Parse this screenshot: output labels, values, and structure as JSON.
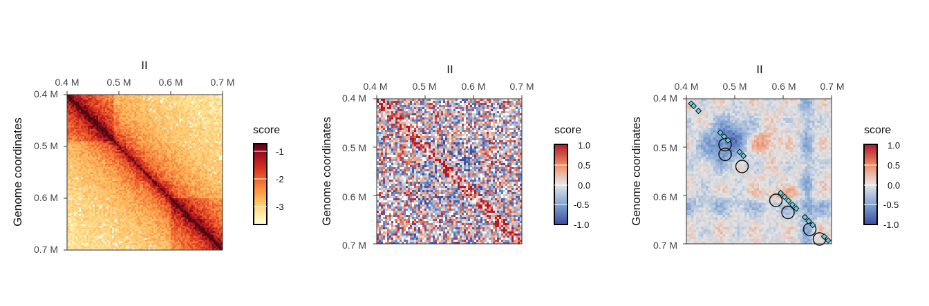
{
  "panels": [
    {
      "id": "observed",
      "title": "II",
      "ylabel": "Genome coordinates",
      "x_ticks": [
        "0.4 M",
        "0.5 M",
        "0.6 M",
        "0.7 M"
      ],
      "y_ticks": [
        "0.4 M",
        "0.5 M",
        "0.6 M",
        "0.7 M"
      ],
      "legend": {
        "title": "score",
        "ticks": [
          "-1",
          "-2",
          "-3"
        ],
        "palette": "ylorrd"
      }
    },
    {
      "id": "correlation",
      "title": "II",
      "ylabel": "Genome coordinates",
      "x_ticks": [
        "0.4 M",
        "0.5 M",
        "0.6 M",
        "0.7 M"
      ],
      "y_ticks": [
        "0.4 M",
        "0.5 M",
        "0.6 M",
        "0.7 M"
      ],
      "legend": {
        "title": "score",
        "ticks": [
          "1.0",
          "0.5",
          "0.0",
          "-0.5",
          "-1.0"
        ],
        "palette": "bluered"
      }
    },
    {
      "id": "smoothed",
      "title": "II",
      "ylabel": "Genome coordinates",
      "x_ticks": [
        "0.4 M",
        "0.5 M",
        "0.6 M",
        "0.7 M"
      ],
      "y_ticks": [
        "0.4 M",
        "0.5 M",
        "0.6 M",
        "0.7 M"
      ],
      "legend": {
        "title": "score",
        "ticks": [
          "1.0",
          "0.5",
          "0.0",
          "-0.5",
          "-1.0"
        ],
        "palette": "bluered"
      }
    }
  ],
  "chart_data": [
    {
      "type": "heatmap",
      "title": "II",
      "xlabel": "",
      "ylabel": "Genome coordinates",
      "xlim": [
        0.4,
        0.7
      ],
      "ylim": [
        0.4,
        0.7
      ],
      "axis_unit": "M",
      "color_scale": {
        "label": "score",
        "range": [
          -3.4,
          -0.8
        ],
        "ticks": [
          -1,
          -2,
          -3
        ]
      }
    },
    {
      "type": "heatmap",
      "title": "II",
      "xlabel": "",
      "ylabel": "Genome coordinates",
      "xlim": [
        0.4,
        0.7
      ],
      "ylim": [
        0.4,
        0.7
      ],
      "axis_unit": "M",
      "color_scale": {
        "label": "score",
        "range": [
          -1.0,
          1.0
        ],
        "ticks": [
          1.0,
          0.5,
          0.0,
          -0.5,
          -1.0
        ]
      }
    },
    {
      "type": "heatmap",
      "title": "II",
      "xlabel": "",
      "ylabel": "Genome coordinates",
      "xlim": [
        0.4,
        0.7
      ],
      "ylim": [
        0.4,
        0.7
      ],
      "axis_unit": "M",
      "color_scale": {
        "label": "score",
        "range": [
          -1.0,
          1.0
        ],
        "ticks": [
          1.0,
          0.5,
          0.0,
          -0.5,
          -1.0
        ]
      },
      "diamond_markers": [
        0.41,
        0.415,
        0.425,
        0.47,
        0.478,
        0.486,
        0.51,
        0.518,
        0.595,
        0.603,
        0.611,
        0.619,
        0.627,
        0.645,
        0.653,
        0.661,
        0.685,
        0.693
      ],
      "circle_markers": [
        {
          "x": 0.48,
          "y": 0.495
        },
        {
          "x": 0.48,
          "y": 0.515
        },
        {
          "x": 0.515,
          "y": 0.54
        },
        {
          "x": 0.585,
          "y": 0.61
        },
        {
          "x": 0.61,
          "y": 0.635
        },
        {
          "x": 0.655,
          "y": 0.67
        },
        {
          "x": 0.675,
          "y": 0.69
        }
      ]
    }
  ]
}
